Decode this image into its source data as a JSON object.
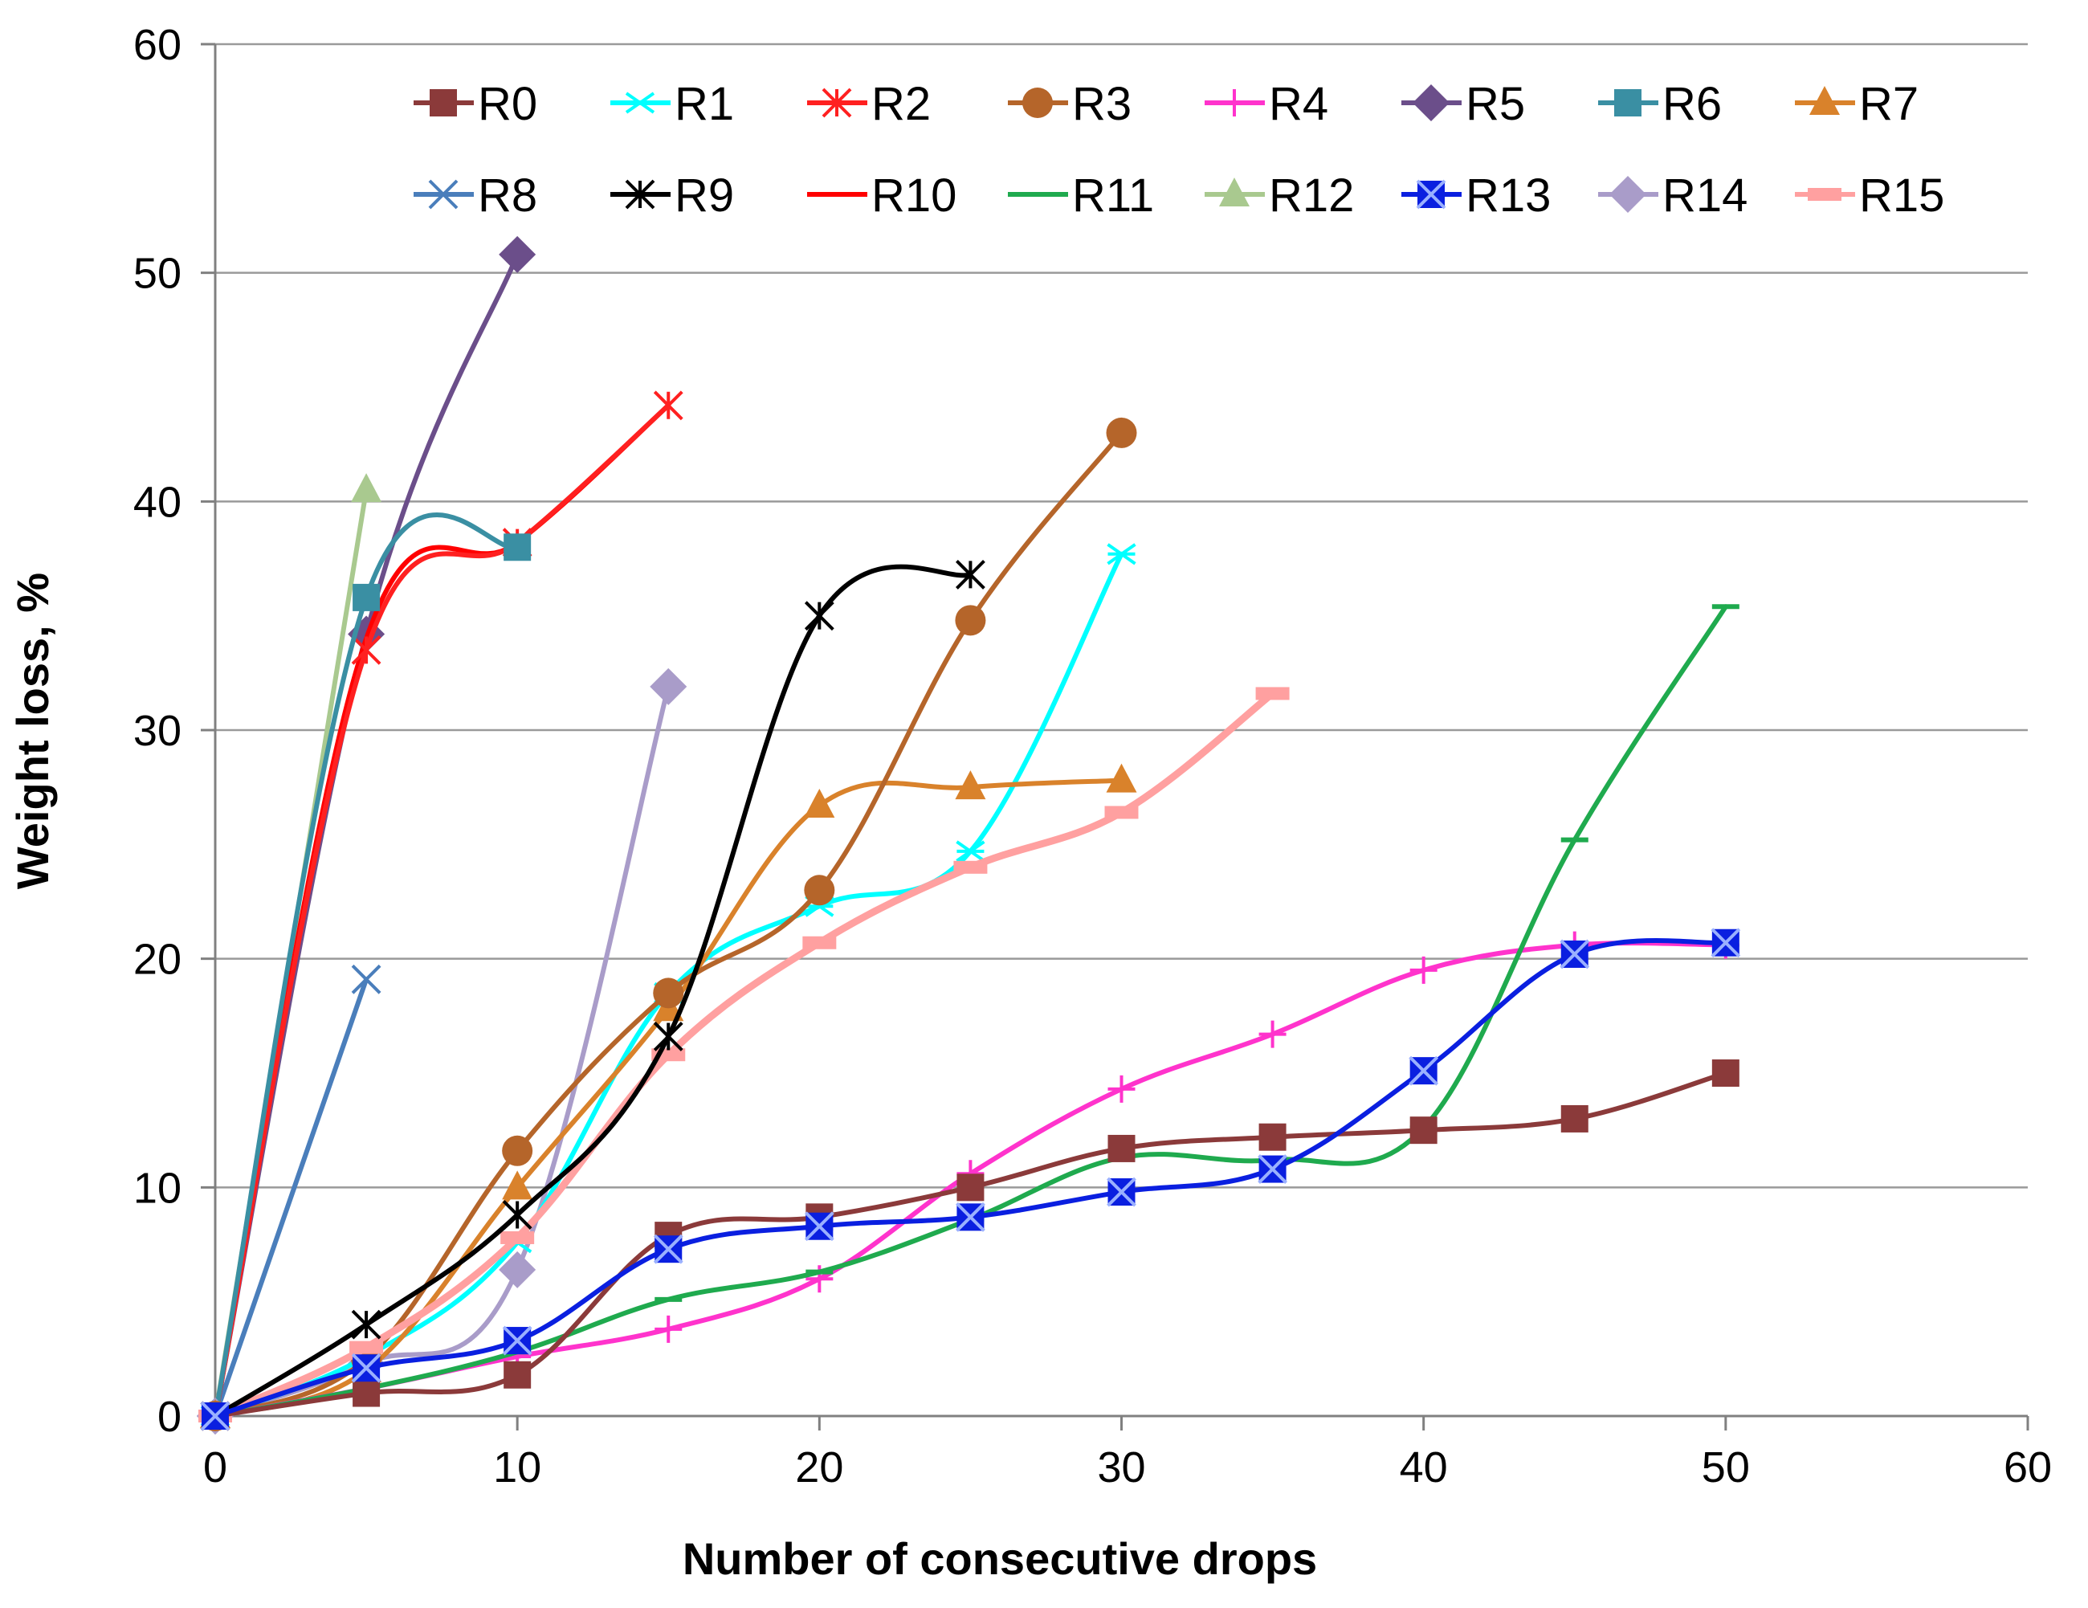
{
  "chart_data": {
    "type": "line",
    "title": "",
    "xlabel": "Number of consecutive drops",
    "ylabel": "Weight loss, %",
    "xlim": [
      0,
      60
    ],
    "ylim": [
      0,
      60
    ],
    "xticks": [
      "0",
      "10",
      "20",
      "30",
      "40",
      "50",
      "60"
    ],
    "yticks": [
      "0",
      "10",
      "20",
      "30",
      "40",
      "50",
      "60"
    ],
    "grid": "horizontal",
    "legend_position": "top",
    "series": [
      {
        "name": "R0",
        "color": "#8B3A3A",
        "marker": "square",
        "x": [
          0,
          5,
          10,
          15,
          20,
          25,
          30,
          35,
          40,
          45,
          50
        ],
        "y": [
          0,
          1.0,
          1.8,
          7.9,
          8.7,
          10.0,
          11.7,
          12.2,
          12.5,
          13.0,
          15.0
        ]
      },
      {
        "name": "R1",
        "color": "#00FFFF",
        "marker": "star",
        "x": [
          0,
          5,
          10,
          15,
          20,
          25,
          30
        ],
        "y": [
          0,
          2.6,
          7.6,
          18.5,
          22.3,
          24.7,
          37.7
        ]
      },
      {
        "name": "R2",
        "color": "#FF2020",
        "marker": "asterisk",
        "x": [
          0,
          5,
          10,
          15
        ],
        "y": [
          0,
          33.5,
          38.2,
          44.2
        ]
      },
      {
        "name": "R3",
        "color": "#B5652A",
        "marker": "circle",
        "x": [
          0,
          5,
          10,
          15,
          20,
          25,
          30
        ],
        "y": [
          0,
          2.5,
          11.6,
          18.5,
          23.0,
          34.8,
          43.0
        ]
      },
      {
        "name": "R4",
        "color": "#FF33CC",
        "marker": "plus",
        "x": [
          0,
          5,
          10,
          15,
          20,
          25,
          30,
          35,
          40,
          45,
          50
        ],
        "y": [
          0,
          1.2,
          2.6,
          3.8,
          6.0,
          10.6,
          14.3,
          16.7,
          19.5,
          20.6,
          20.6
        ]
      },
      {
        "name": "R5",
        "color": "#6B4E8A",
        "marker": "diamond",
        "x": [
          0,
          5,
          10
        ],
        "y": [
          0,
          34.2,
          50.8
        ]
      },
      {
        "name": "R6",
        "color": "#3A8FA3",
        "marker": "square",
        "x": [
          0,
          5,
          10
        ],
        "y": [
          0,
          35.8,
          38.0
        ]
      },
      {
        "name": "R7",
        "color": "#D9822B",
        "marker": "triangle",
        "x": [
          0,
          5,
          10,
          15,
          20,
          25,
          30
        ],
        "y": [
          0,
          2.0,
          10.0,
          17.8,
          26.7,
          27.5,
          27.8
        ]
      },
      {
        "name": "R8",
        "color": "#4A7EBB",
        "marker": "x",
        "x": [
          0,
          5
        ],
        "y": [
          0,
          19.1
        ]
      },
      {
        "name": "R9",
        "color": "#000000",
        "marker": "asterisk",
        "x": [
          0,
          5,
          10,
          15,
          20,
          25
        ],
        "y": [
          0,
          4.0,
          8.8,
          16.6,
          35.0,
          36.8
        ]
      },
      {
        "name": "R10",
        "color": "#FF0000",
        "marker": "none",
        "x": [
          0,
          5,
          10,
          15
        ],
        "y": [
          0,
          34.0,
          38.2,
          44.2
        ]
      },
      {
        "name": "R11",
        "color": "#1FAA4E",
        "marker": "dash",
        "x": [
          0,
          5,
          10,
          15,
          20,
          25,
          30,
          35,
          40,
          45,
          50
        ],
        "y": [
          0,
          1.2,
          2.8,
          5.1,
          6.3,
          8.6,
          11.3,
          11.2,
          12.6,
          25.2,
          35.4
        ]
      },
      {
        "name": "R12",
        "color": "#A9C98F",
        "marker": "triangle",
        "x": [
          0,
          5
        ],
        "y": [
          0,
          40.5
        ]
      },
      {
        "name": "R13",
        "color": "#0A1FE0",
        "marker": "squarex",
        "x": [
          0,
          5,
          10,
          15,
          20,
          25,
          30,
          35,
          40,
          45,
          50
        ],
        "y": [
          0,
          2.1,
          3.3,
          7.3,
          8.3,
          8.7,
          9.8,
          10.8,
          15.1,
          20.2,
          20.7
        ]
      },
      {
        "name": "R14",
        "color": "#A99CC9",
        "marker": "diamond",
        "x": [
          0,
          5,
          10,
          15
        ],
        "y": [
          0,
          2.3,
          6.4,
          31.9
        ]
      },
      {
        "name": "R15",
        "color": "#FFA0A0",
        "marker": "bar",
        "x": [
          0,
          5,
          10,
          15,
          20,
          25,
          30,
          35
        ],
        "y": [
          0,
          3.0,
          7.8,
          15.8,
          20.7,
          24.0,
          26.4,
          31.6
        ]
      }
    ]
  }
}
